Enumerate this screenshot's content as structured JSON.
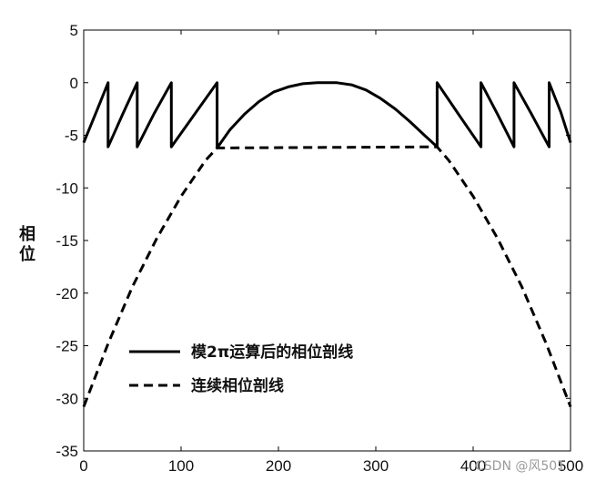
{
  "chart_data": {
    "type": "line",
    "title": "",
    "xlabel": "",
    "ylabel": "相位",
    "xlim": [
      0,
      500
    ],
    "ylim": [
      -35,
      5
    ],
    "x_ticks": [
      0,
      100,
      200,
      300,
      400,
      500
    ],
    "y_ticks": [
      5,
      0,
      -5,
      -10,
      -15,
      -20,
      -25,
      -30,
      -35
    ],
    "grid": false,
    "legend_position": "bottom-left",
    "series": [
      {
        "name": "模2π运算后的相位剖线",
        "style": "solid",
        "color": "#000000",
        "x": [
          0,
          12,
          25,
          25,
          40,
          55,
          55,
          72,
          90,
          90,
          110,
          137,
          137,
          150,
          165,
          180,
          195,
          210,
          225,
          240,
          250,
          260,
          275,
          290,
          305,
          320,
          335,
          350,
          363,
          363,
          385,
          408,
          408,
          425,
          442,
          442,
          460,
          478,
          478,
          490,
          500
        ],
        "y": [
          -5.7,
          -3.0,
          0,
          -6.1,
          -3.0,
          0,
          -6.1,
          -3.0,
          0,
          -6.1,
          -3.5,
          0,
          -6.2,
          -4.5,
          -3.0,
          -1.8,
          -0.9,
          -0.4,
          -0.1,
          0,
          0,
          0,
          -0.2,
          -0.7,
          -1.5,
          -2.5,
          -3.7,
          -5.0,
          -6.1,
          0,
          -3.0,
          -6.1,
          0,
          -3.0,
          -6.1,
          0,
          -3.0,
          -6.1,
          0,
          -2.8,
          -5.7
        ]
      },
      {
        "name": "连续相位剖线",
        "style": "dashed",
        "color": "#000000",
        "x": [
          0,
          25,
          50,
          75,
          100,
          125,
          137,
          363,
          375,
          400,
          425,
          450,
          475,
          500
        ],
        "y": [
          -30.8,
          -24.8,
          -19.4,
          -14.8,
          -10.8,
          -7.4,
          -6.2,
          -6.1,
          -7.4,
          -10.8,
          -14.8,
          -19.4,
          -24.8,
          -30.8
        ]
      }
    ]
  },
  "watermark": "CSDN @风501"
}
